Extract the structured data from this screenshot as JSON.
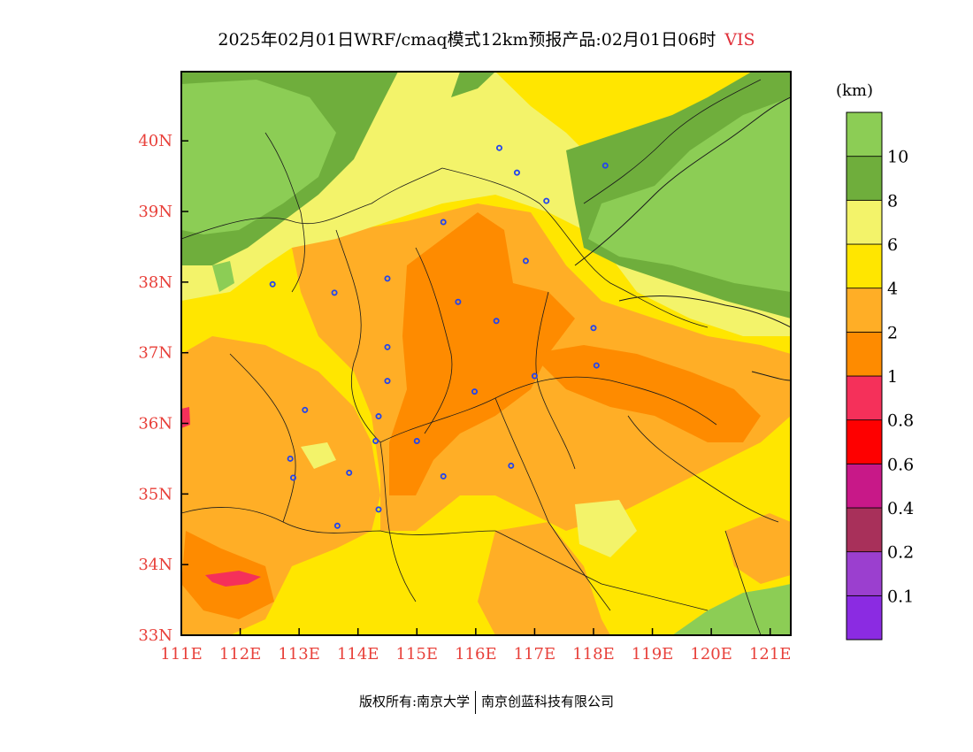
{
  "title": {
    "main": "2025年02月01日WRF/cmaq模式12km预报产品:02月01日06时",
    "variable": "VIS"
  },
  "colorbar": {
    "unit": "(km)",
    "bins": [
      {
        "color": "#8b2be2"
      },
      {
        "color": "#9b3fcf"
      },
      {
        "color": "#a8305a"
      },
      {
        "color": "#c81888"
      },
      {
        "color": "#fe0000"
      },
      {
        "color": "#f5305a"
      },
      {
        "color": "#fe8b00"
      },
      {
        "color": "#ffae26"
      },
      {
        "color": "#ffe600"
      },
      {
        "color": "#f3f36a"
      },
      {
        "color": "#6fae3c"
      },
      {
        "color": "#8ccd55"
      }
    ],
    "labels": [
      "0.1",
      "0.2",
      "0.4",
      "0.6",
      "0.8",
      "1",
      "2",
      "4",
      "6",
      "8",
      "10"
    ]
  },
  "map": {
    "lon_labels": [
      "111E",
      "112E",
      "113E",
      "114E",
      "115E",
      "116E",
      "117E",
      "118E",
      "119E",
      "120E",
      "121E"
    ],
    "lat_labels": [
      "33N",
      "34N",
      "35N",
      "36N",
      "37N",
      "38N",
      "39N",
      "40N"
    ],
    "lon_range": [
      111,
      121.35
    ],
    "lat_range": [
      33,
      40.98
    ],
    "label_color": "#e8403a",
    "stations": [
      [
        116.4,
        39.9
      ],
      [
        116.7,
        39.55
      ],
      [
        118.2,
        39.65
      ],
      [
        117.2,
        39.15
      ],
      [
        115.45,
        38.85
      ],
      [
        116.85,
        38.3
      ],
      [
        114.5,
        38.05
      ],
      [
        113.6,
        37.85
      ],
      [
        112.55,
        37.97
      ],
      [
        115.7,
        37.72
      ],
      [
        116.35,
        37.45
      ],
      [
        118.0,
        37.35
      ],
      [
        114.5,
        37.08
      ],
      [
        118.05,
        36.82
      ],
      [
        117.0,
        36.67
      ],
      [
        114.5,
        36.6
      ],
      [
        115.98,
        36.45
      ],
      [
        114.35,
        36.1
      ],
      [
        113.1,
        36.19
      ],
      [
        115.0,
        35.75
      ],
      [
        114.3,
        35.75
      ],
      [
        112.85,
        35.5
      ],
      [
        113.85,
        35.3
      ],
      [
        116.6,
        35.4
      ],
      [
        115.45,
        35.25
      ],
      [
        112.9,
        35.23
      ],
      [
        114.35,
        34.78
      ],
      [
        113.65,
        34.55
      ]
    ]
  },
  "copyright": {
    "owner": "版权所有:南京大学",
    "partner": "南京创蓝科技有限公司"
  }
}
